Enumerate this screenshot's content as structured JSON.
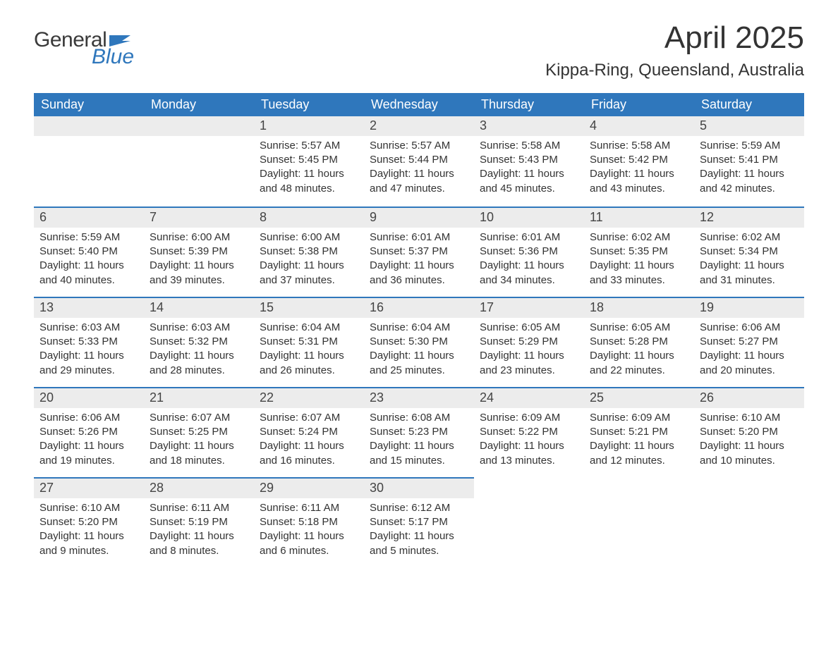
{
  "logo": {
    "text1": "General",
    "text2": "Blue",
    "flag_color": "#2f77bc"
  },
  "title": "April 2025",
  "location": "Kippa-Ring, Queensland, Australia",
  "header_bg": "#2f77bc",
  "header_fg": "#ffffff",
  "daynum_bg": "#ececec",
  "rule_color": "#2f77bc",
  "text_color": "#333333",
  "weekdays": [
    "Sunday",
    "Monday",
    "Tuesday",
    "Wednesday",
    "Thursday",
    "Friday",
    "Saturday"
  ],
  "weeks": [
    [
      null,
      null,
      {
        "n": "1",
        "sr": "Sunrise: 5:57 AM",
        "ss": "Sunset: 5:45 PM",
        "d1": "Daylight: 11 hours",
        "d2": "and 48 minutes."
      },
      {
        "n": "2",
        "sr": "Sunrise: 5:57 AM",
        "ss": "Sunset: 5:44 PM",
        "d1": "Daylight: 11 hours",
        "d2": "and 47 minutes."
      },
      {
        "n": "3",
        "sr": "Sunrise: 5:58 AM",
        "ss": "Sunset: 5:43 PM",
        "d1": "Daylight: 11 hours",
        "d2": "and 45 minutes."
      },
      {
        "n": "4",
        "sr": "Sunrise: 5:58 AM",
        "ss": "Sunset: 5:42 PM",
        "d1": "Daylight: 11 hours",
        "d2": "and 43 minutes."
      },
      {
        "n": "5",
        "sr": "Sunrise: 5:59 AM",
        "ss": "Sunset: 5:41 PM",
        "d1": "Daylight: 11 hours",
        "d2": "and 42 minutes."
      }
    ],
    [
      {
        "n": "6",
        "sr": "Sunrise: 5:59 AM",
        "ss": "Sunset: 5:40 PM",
        "d1": "Daylight: 11 hours",
        "d2": "and 40 minutes."
      },
      {
        "n": "7",
        "sr": "Sunrise: 6:00 AM",
        "ss": "Sunset: 5:39 PM",
        "d1": "Daylight: 11 hours",
        "d2": "and 39 minutes."
      },
      {
        "n": "8",
        "sr": "Sunrise: 6:00 AM",
        "ss": "Sunset: 5:38 PM",
        "d1": "Daylight: 11 hours",
        "d2": "and 37 minutes."
      },
      {
        "n": "9",
        "sr": "Sunrise: 6:01 AM",
        "ss": "Sunset: 5:37 PM",
        "d1": "Daylight: 11 hours",
        "d2": "and 36 minutes."
      },
      {
        "n": "10",
        "sr": "Sunrise: 6:01 AM",
        "ss": "Sunset: 5:36 PM",
        "d1": "Daylight: 11 hours",
        "d2": "and 34 minutes."
      },
      {
        "n": "11",
        "sr": "Sunrise: 6:02 AM",
        "ss": "Sunset: 5:35 PM",
        "d1": "Daylight: 11 hours",
        "d2": "and 33 minutes."
      },
      {
        "n": "12",
        "sr": "Sunrise: 6:02 AM",
        "ss": "Sunset: 5:34 PM",
        "d1": "Daylight: 11 hours",
        "d2": "and 31 minutes."
      }
    ],
    [
      {
        "n": "13",
        "sr": "Sunrise: 6:03 AM",
        "ss": "Sunset: 5:33 PM",
        "d1": "Daylight: 11 hours",
        "d2": "and 29 minutes."
      },
      {
        "n": "14",
        "sr": "Sunrise: 6:03 AM",
        "ss": "Sunset: 5:32 PM",
        "d1": "Daylight: 11 hours",
        "d2": "and 28 minutes."
      },
      {
        "n": "15",
        "sr": "Sunrise: 6:04 AM",
        "ss": "Sunset: 5:31 PM",
        "d1": "Daylight: 11 hours",
        "d2": "and 26 minutes."
      },
      {
        "n": "16",
        "sr": "Sunrise: 6:04 AM",
        "ss": "Sunset: 5:30 PM",
        "d1": "Daylight: 11 hours",
        "d2": "and 25 minutes."
      },
      {
        "n": "17",
        "sr": "Sunrise: 6:05 AM",
        "ss": "Sunset: 5:29 PM",
        "d1": "Daylight: 11 hours",
        "d2": "and 23 minutes."
      },
      {
        "n": "18",
        "sr": "Sunrise: 6:05 AM",
        "ss": "Sunset: 5:28 PM",
        "d1": "Daylight: 11 hours",
        "d2": "and 22 minutes."
      },
      {
        "n": "19",
        "sr": "Sunrise: 6:06 AM",
        "ss": "Sunset: 5:27 PM",
        "d1": "Daylight: 11 hours",
        "d2": "and 20 minutes."
      }
    ],
    [
      {
        "n": "20",
        "sr": "Sunrise: 6:06 AM",
        "ss": "Sunset: 5:26 PM",
        "d1": "Daylight: 11 hours",
        "d2": "and 19 minutes."
      },
      {
        "n": "21",
        "sr": "Sunrise: 6:07 AM",
        "ss": "Sunset: 5:25 PM",
        "d1": "Daylight: 11 hours",
        "d2": "and 18 minutes."
      },
      {
        "n": "22",
        "sr": "Sunrise: 6:07 AM",
        "ss": "Sunset: 5:24 PM",
        "d1": "Daylight: 11 hours",
        "d2": "and 16 minutes."
      },
      {
        "n": "23",
        "sr": "Sunrise: 6:08 AM",
        "ss": "Sunset: 5:23 PM",
        "d1": "Daylight: 11 hours",
        "d2": "and 15 minutes."
      },
      {
        "n": "24",
        "sr": "Sunrise: 6:09 AM",
        "ss": "Sunset: 5:22 PM",
        "d1": "Daylight: 11 hours",
        "d2": "and 13 minutes."
      },
      {
        "n": "25",
        "sr": "Sunrise: 6:09 AM",
        "ss": "Sunset: 5:21 PM",
        "d1": "Daylight: 11 hours",
        "d2": "and 12 minutes."
      },
      {
        "n": "26",
        "sr": "Sunrise: 6:10 AM",
        "ss": "Sunset: 5:20 PM",
        "d1": "Daylight: 11 hours",
        "d2": "and 10 minutes."
      }
    ],
    [
      {
        "n": "27",
        "sr": "Sunrise: 6:10 AM",
        "ss": "Sunset: 5:20 PM",
        "d1": "Daylight: 11 hours",
        "d2": "and 9 minutes."
      },
      {
        "n": "28",
        "sr": "Sunrise: 6:11 AM",
        "ss": "Sunset: 5:19 PM",
        "d1": "Daylight: 11 hours",
        "d2": "and 8 minutes."
      },
      {
        "n": "29",
        "sr": "Sunrise: 6:11 AM",
        "ss": "Sunset: 5:18 PM",
        "d1": "Daylight: 11 hours",
        "d2": "and 6 minutes."
      },
      {
        "n": "30",
        "sr": "Sunrise: 6:12 AM",
        "ss": "Sunset: 5:17 PM",
        "d1": "Daylight: 11 hours",
        "d2": "and 5 minutes."
      },
      null,
      null,
      null
    ]
  ]
}
